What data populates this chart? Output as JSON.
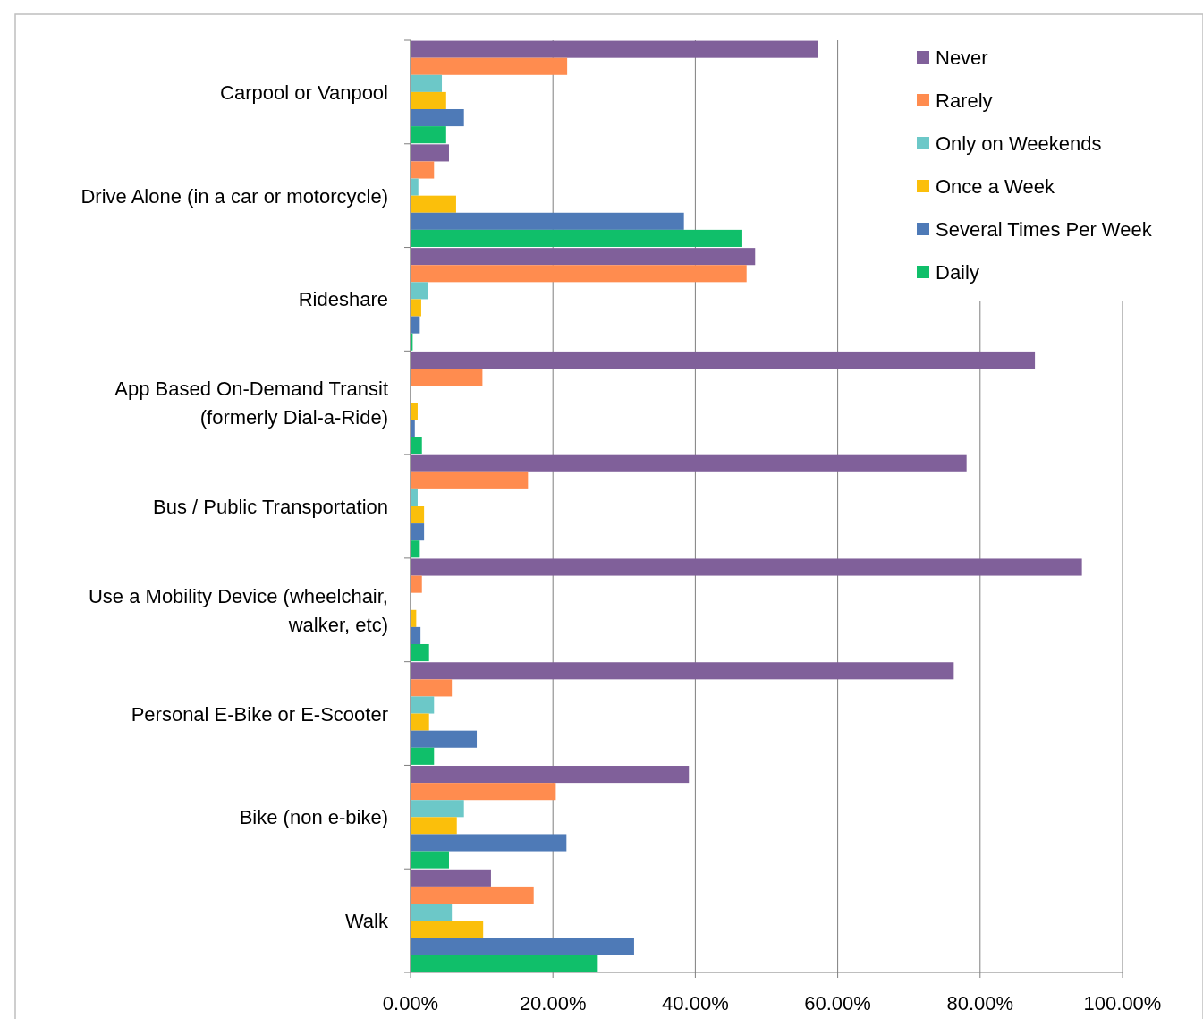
{
  "chart_data": {
    "type": "bar",
    "orientation": "horizontal",
    "categories": [
      "Carpool or Vanpool",
      "Drive Alone (in a car or motorcycle)",
      "Rideshare",
      "App Based On-Demand Transit (formerly Dial-a-Ride)",
      "Bus / Public Transportation",
      "Use a Mobility Device (wheelchair, walker, etc)",
      "Personal E-Bike or E-Scooter",
      "Bike (non e-bike)",
      "Walk"
    ],
    "series": [
      {
        "name": "Never",
        "color": "#80609a",
        "values": [
          57.2,
          5.4,
          48.4,
          87.7,
          78.1,
          94.3,
          76.3,
          39.1,
          11.3
        ]
      },
      {
        "name": "Rarely",
        "color": "#ff8c4f",
        "values": [
          22.0,
          3.3,
          47.2,
          10.1,
          16.5,
          1.6,
          5.8,
          20.4,
          17.3
        ]
      },
      {
        "name": "Only on Weekends",
        "color": "#6cc8c8",
        "values": [
          4.4,
          1.1,
          2.5,
          0.1,
          1.0,
          0,
          3.3,
          7.5,
          5.8
        ]
      },
      {
        "name": "Once a Week",
        "color": "#fbbf0b",
        "values": [
          5.0,
          6.4,
          1.5,
          1.0,
          1.9,
          0.8,
          2.6,
          6.5,
          10.2
        ]
      },
      {
        "name": "Several Times Per Week",
        "color": "#4e7ab7",
        "values": [
          7.5,
          38.4,
          1.3,
          0.6,
          1.9,
          1.4,
          9.3,
          21.9,
          31.4
        ]
      },
      {
        "name": "Daily",
        "color": "#10bf6a",
        "values": [
          5.0,
          46.6,
          0.3,
          1.6,
          1.3,
          2.6,
          3.3,
          5.4,
          26.3
        ]
      }
    ],
    "xlim": [
      0,
      100
    ],
    "xticks": [
      {
        "value": 0,
        "label": "0.00%"
      },
      {
        "value": 20,
        "label": "20.00%"
      },
      {
        "value": 40,
        "label": "40.00%"
      },
      {
        "value": 60,
        "label": "60.00%"
      },
      {
        "value": 80,
        "label": "80.00%"
      },
      {
        "value": 100,
        "label": "100.00%"
      }
    ],
    "grid": "x",
    "legend": "top right"
  }
}
